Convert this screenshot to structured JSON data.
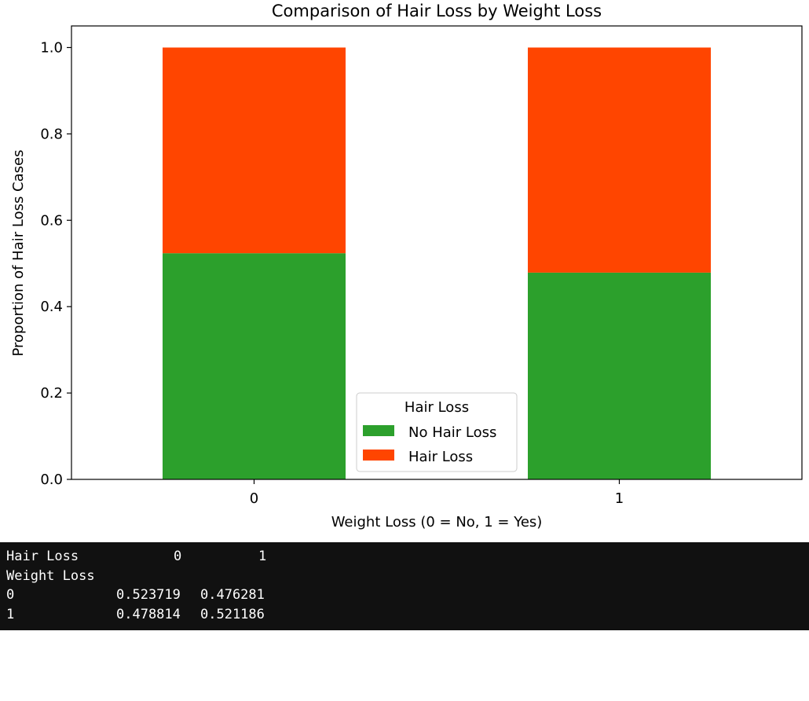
{
  "chart_data": {
    "type": "bar",
    "stacked": true,
    "title": "Comparison of Hair Loss by Weight Loss",
    "xlabel": "Weight Loss (0 = No, 1 = Yes)",
    "ylabel": "Proportion of Hair Loss Cases",
    "categories": [
      "0",
      "1"
    ],
    "series": [
      {
        "name": "No Hair Loss",
        "values": [
          0.523719,
          0.478814
        ],
        "color": "#2ca02c"
      },
      {
        "name": "Hair Loss",
        "values": [
          0.476281,
          0.521186
        ],
        "color": "#ff4500"
      }
    ],
    "ylim": [
      0,
      1.05
    ],
    "yticks": [
      "0.0",
      "0.2",
      "0.4",
      "0.6",
      "0.8",
      "1.0"
    ],
    "grid": false,
    "legend": {
      "title": "Hair Loss",
      "placement": "lower center"
    }
  },
  "console": {
    "header_label": "Hair Loss",
    "header_cols": [
      "0",
      "1"
    ],
    "index_label": "Weight Loss",
    "rows": [
      {
        "index": "0",
        "values": [
          "0.523719",
          "0.476281"
        ]
      },
      {
        "index": "1",
        "values": [
          "0.478814",
          "0.521186"
        ]
      }
    ]
  }
}
